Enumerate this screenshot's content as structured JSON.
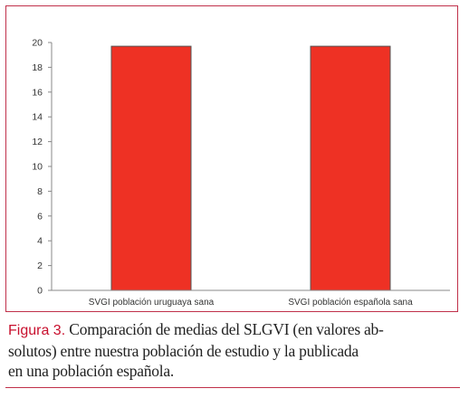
{
  "colors": {
    "frame": "#c0304a",
    "bar": "#ee3124",
    "bar_outline": "#555555",
    "axis": "#888888",
    "caption_label": "#c8102e",
    "text": "#222222"
  },
  "chart_data": {
    "type": "bar",
    "categories": [
      "SVGI población uruguaya sana",
      "SVGI población española sana"
    ],
    "values": [
      19.7,
      19.7
    ],
    "ylim": [
      0,
      20
    ],
    "yticks": [
      0,
      2,
      4,
      6,
      8,
      10,
      12,
      14,
      16,
      18,
      20
    ],
    "grid": false,
    "legend": "none",
    "title": "",
    "xlabel": "",
    "ylabel": ""
  },
  "caption": {
    "label": "Figura 3.",
    "line1": "Comparación de medias del SLGVI (en valores ab-",
    "line2": "solutos) entre nuestra población de estudio y la publicada",
    "line3": "en una población española."
  }
}
